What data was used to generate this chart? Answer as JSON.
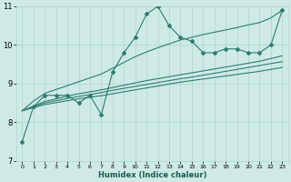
{
  "xlabel": "Humidex (Indice chaleur)",
  "x_data": [
    0,
    1,
    2,
    3,
    4,
    5,
    6,
    7,
    8,
    9,
    10,
    11,
    12,
    13,
    14,
    15,
    16,
    17,
    18,
    19,
    20,
    21,
    22,
    23
  ],
  "main_line": [
    7.5,
    8.4,
    8.7,
    8.7,
    8.7,
    8.5,
    8.7,
    8.2,
    9.3,
    9.8,
    10.2,
    10.8,
    11.0,
    10.5,
    10.2,
    10.1,
    9.8,
    9.8,
    9.9,
    9.9,
    9.8,
    9.8,
    10.0,
    10.9
  ],
  "band_upper": [
    8.3,
    8.55,
    8.75,
    8.85,
    8.95,
    9.05,
    9.15,
    9.25,
    9.4,
    9.55,
    9.7,
    9.82,
    9.93,
    10.03,
    10.13,
    10.2,
    10.27,
    10.33,
    10.39,
    10.45,
    10.52,
    10.58,
    10.7,
    10.9
  ],
  "reg_line1": [
    8.3,
    8.42,
    8.54,
    8.61,
    8.68,
    8.74,
    8.79,
    8.84,
    8.9,
    8.96,
    9.02,
    9.08,
    9.13,
    9.18,
    9.23,
    9.28,
    9.33,
    9.38,
    9.43,
    9.48,
    9.53,
    9.58,
    9.65,
    9.72
  ],
  "reg_line2": [
    8.3,
    8.4,
    8.5,
    8.56,
    8.62,
    8.67,
    8.72,
    8.77,
    8.83,
    8.88,
    8.93,
    8.98,
    9.03,
    9.08,
    9.13,
    9.17,
    9.22,
    9.27,
    9.32,
    9.37,
    9.42,
    9.47,
    9.52,
    9.57
  ],
  "band_lower": [
    8.3,
    8.38,
    8.46,
    8.51,
    8.56,
    8.61,
    8.65,
    8.69,
    8.74,
    8.79,
    8.84,
    8.89,
    8.94,
    8.99,
    9.04,
    9.08,
    9.12,
    9.16,
    9.2,
    9.24,
    9.28,
    9.32,
    9.37,
    9.42
  ],
  "ylim": [
    7,
    11
  ],
  "xlim": [
    -0.5,
    23.5
  ],
  "yticks": [
    7,
    8,
    9,
    10,
    11
  ],
  "xticks": [
    0,
    1,
    2,
    3,
    4,
    5,
    6,
    7,
    8,
    9,
    10,
    11,
    12,
    13,
    14,
    15,
    16,
    17,
    18,
    19,
    20,
    21,
    22,
    23
  ],
  "line_color": "#2e7d6e",
  "bg_color": "#ceeae6",
  "grid_color": "#aed4cf"
}
